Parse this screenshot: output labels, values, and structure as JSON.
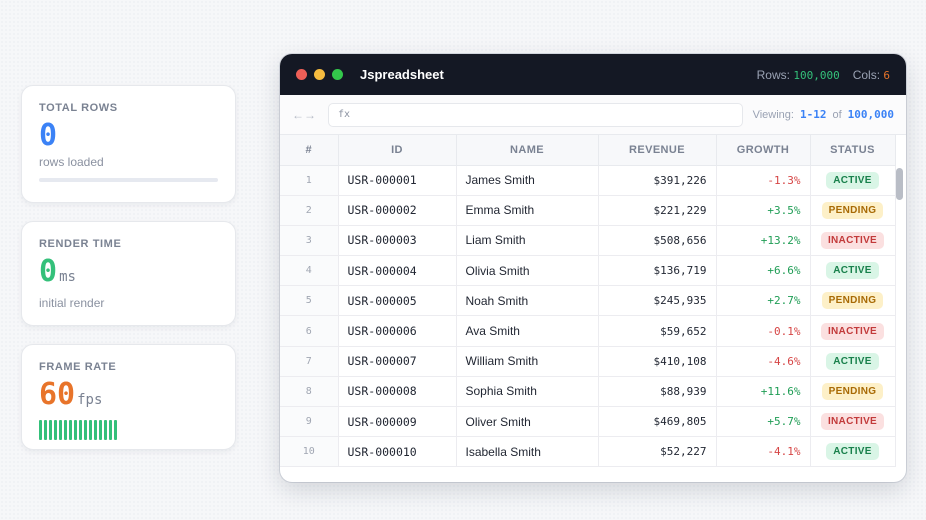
{
  "stats": {
    "total_rows": {
      "label": "TOTAL ROWS",
      "value": "0",
      "sub": "rows loaded",
      "progress": 0,
      "color": "#3b82f6"
    },
    "render_time": {
      "label": "RENDER TIME",
      "value": "0",
      "unit": "ms",
      "sub": "initial render",
      "color": "#34c07a"
    },
    "frame_rate": {
      "label": "FRAME RATE",
      "value": "60",
      "unit": "fps",
      "color": "#e8742a"
    }
  },
  "window": {
    "title": "Jspreadsheet",
    "rows_label": "Rows:",
    "rows_value": "100,000",
    "cols_label": "Cols:",
    "cols_value": "6",
    "rows_color": "#34c07a",
    "cols_color": "#e8742a"
  },
  "toolbar": {
    "arrows": "←→",
    "fx_placeholder": "fx",
    "viewing_label": "Viewing:",
    "range": "1-12",
    "of_label": "of",
    "total": "100,000"
  },
  "table": {
    "headers": [
      "#",
      "ID",
      "NAME",
      "REVENUE",
      "GROWTH",
      "STATUS"
    ],
    "rows": [
      {
        "idx": "1",
        "id": "USR-000001",
        "name": "James Smith",
        "revenue": "$391,226",
        "growth": "-1.3%",
        "status": "ACTIVE"
      },
      {
        "idx": "2",
        "id": "USR-000002",
        "name": "Emma Smith",
        "revenue": "$221,229",
        "growth": "+3.5%",
        "status": "PENDING"
      },
      {
        "idx": "3",
        "id": "USR-000003",
        "name": "Liam Smith",
        "revenue": "$508,656",
        "growth": "+13.2%",
        "status": "INACTIVE"
      },
      {
        "idx": "4",
        "id": "USR-000004",
        "name": "Olivia Smith",
        "revenue": "$136,719",
        "growth": "+6.6%",
        "status": "ACTIVE"
      },
      {
        "idx": "5",
        "id": "USR-000005",
        "name": "Noah Smith",
        "revenue": "$245,935",
        "growth": "+2.7%",
        "status": "PENDING"
      },
      {
        "idx": "6",
        "id": "USR-000006",
        "name": "Ava Smith",
        "revenue": "$59,652",
        "growth": "-0.1%",
        "status": "INACTIVE"
      },
      {
        "idx": "7",
        "id": "USR-000007",
        "name": "William Smith",
        "revenue": "$410,108",
        "growth": "-4.6%",
        "status": "ACTIVE"
      },
      {
        "idx": "8",
        "id": "USR-000008",
        "name": "Sophia Smith",
        "revenue": "$88,939",
        "growth": "+11.6%",
        "status": "PENDING"
      },
      {
        "idx": "9",
        "id": "USR-000009",
        "name": "Oliver Smith",
        "revenue": "$469,805",
        "growth": "+5.7%",
        "status": "INACTIVE"
      },
      {
        "idx": "10",
        "id": "USR-000010",
        "name": "Isabella Smith",
        "revenue": "$52,227",
        "growth": "-4.1%",
        "status": "ACTIVE"
      }
    ]
  },
  "colors": {
    "positive": "#1f9d55",
    "negative": "#d64545",
    "active_bg": "#d9f5e6",
    "active_fg": "#18804b",
    "pending_bg": "#fdf0c8",
    "pending_fg": "#a86a05",
    "inactive_bg": "#fbe0e0",
    "inactive_fg": "#c23a3a"
  }
}
